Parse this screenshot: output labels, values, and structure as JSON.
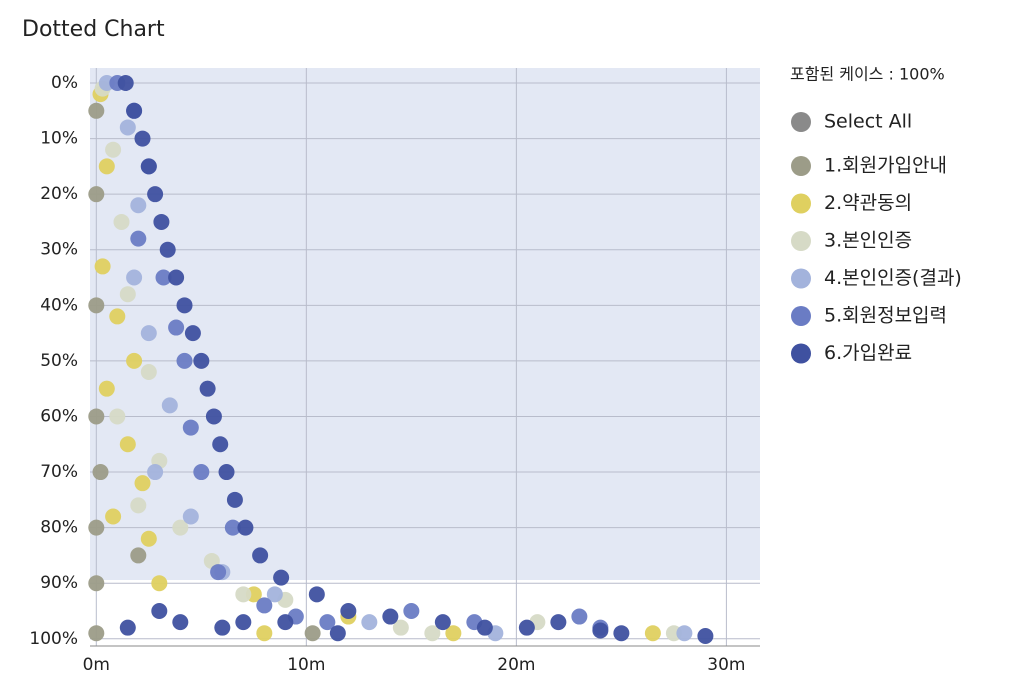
{
  "chart_data": {
    "type": "scatter",
    "title": "Dotted Chart",
    "legend_title": "포함된 케이스 : 100%",
    "select_all": {
      "label": "Select All",
      "color": "#8a8a8a"
    },
    "xlim": [
      -0.3,
      31.6
    ],
    "ylim": [
      101.3,
      -2.7
    ],
    "xticks": [
      {
        "value": 0,
        "label": "0m"
      },
      {
        "value": 10,
        "label": "10m"
      },
      {
        "value": 20,
        "label": "20m"
      },
      {
        "value": 30,
        "label": "30m"
      }
    ],
    "yticks": [
      {
        "value": 0,
        "label": "0%"
      },
      {
        "value": 10,
        "label": "10%"
      },
      {
        "value": 20,
        "label": "20%"
      },
      {
        "value": 30,
        "label": "30%"
      },
      {
        "value": 40,
        "label": "40%"
      },
      {
        "value": 50,
        "label": "50%"
      },
      {
        "value": 60,
        "label": "60%"
      },
      {
        "value": 70,
        "label": "70%"
      },
      {
        "value": 80,
        "label": "80%"
      },
      {
        "value": 90,
        "label": "90%"
      },
      {
        "value": 100,
        "label": "100%"
      }
    ],
    "grid": true,
    "legend": "right",
    "series": [
      {
        "name": "1.회원가입안내",
        "color": "#9c9c88",
        "x": [
          0,
          0,
          0,
          0,
          0,
          0,
          0,
          10.3,
          2,
          0.2
        ],
        "values": [
          5,
          20,
          40,
          60,
          80,
          90,
          99,
          99,
          85,
          70
        ]
      },
      {
        "name": "2.약관동의",
        "color": "#dfd060",
        "x": [
          0.2,
          0.5,
          0.3,
          1,
          0.5,
          1.5,
          0.8,
          2.5,
          3,
          7.5,
          8,
          12,
          17,
          26.5,
          1.8,
          2.2
        ],
        "values": [
          2,
          15,
          33,
          42,
          55,
          65,
          78,
          82,
          90,
          92,
          99,
          96,
          99,
          99,
          50,
          72
        ]
      },
      {
        "name": "3.본인인증",
        "color": "#d6dac6",
        "x": [
          0.3,
          0.8,
          1.2,
          1.5,
          2.5,
          1,
          3,
          2,
          4,
          5.5,
          7,
          9,
          14.5,
          16,
          21,
          27.5
        ],
        "values": [
          1,
          12,
          25,
          38,
          52,
          60,
          68,
          76,
          80,
          86,
          92,
          93,
          98,
          99,
          97,
          99
        ]
      },
      {
        "name": "4.본인인증(결과)",
        "color": "#a3b3dc",
        "x": [
          0.5,
          1.5,
          2,
          1.8,
          2.5,
          3.5,
          2.8,
          4.5,
          6,
          8.5,
          13,
          19,
          28
        ],
        "values": [
          0,
          8,
          22,
          35,
          45,
          58,
          70,
          78,
          88,
          92,
          97,
          99,
          99
        ]
      },
      {
        "name": "5.회원정보입력",
        "color": "#6a7cc4",
        "x": [
          1,
          1.8,
          2.5,
          2,
          3.2,
          3.8,
          4.2,
          4.5,
          5,
          6.5,
          5.8,
          8,
          9.5,
          11,
          15,
          18,
          23,
          24
        ],
        "values": [
          0,
          5,
          15,
          28,
          35,
          44,
          50,
          62,
          70,
          80,
          88,
          94,
          96,
          97,
          95,
          97,
          96,
          98
        ]
      },
      {
        "name": "6.가입완료",
        "color": "#3f51a0",
        "x": [
          1.4,
          1.8,
          2.2,
          2.5,
          2.8,
          3.1,
          3.4,
          3.8,
          4.2,
          4.6,
          5,
          5.3,
          5.6,
          5.9,
          6.2,
          6.6,
          7.1,
          7.8,
          8.8,
          10.5,
          12,
          14,
          16.5,
          18.5,
          20.5,
          22,
          24,
          25,
          29,
          3,
          1.5,
          4,
          6,
          7,
          11.5,
          9
        ],
        "values": [
          0,
          5,
          10,
          15,
          20,
          25,
          30,
          35,
          40,
          45,
          50,
          55,
          60,
          65,
          70,
          75,
          80,
          85,
          89,
          92,
          95,
          96,
          97,
          98,
          98,
          97,
          98.5,
          99,
          99.5,
          95,
          98,
          97,
          98,
          97,
          99,
          97
        ]
      }
    ]
  }
}
